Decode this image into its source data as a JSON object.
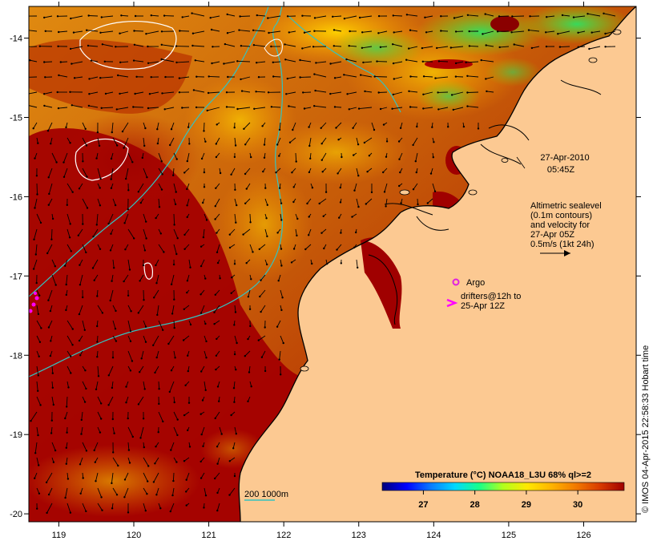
{
  "map": {
    "title": "",
    "timestamp_date": "27-Apr-2010",
    "timestamp_time": "05:45Z",
    "lon_ticks": [
      "119",
      "120",
      "121",
      "122",
      "123",
      "124",
      "125",
      "126"
    ],
    "lat_ticks": [
      "-14",
      "-15",
      "-16",
      "-17",
      "-18",
      "-19",
      "-20"
    ],
    "lon_range": [
      118.6,
      126.7
    ],
    "lat_range": [
      -13.6,
      -20.1
    ],
    "legend": {
      "altimetry_lines": [
        "Altimetric sealevel",
        "(0.1m contours)",
        "and velocity for",
        "27-Apr 05Z",
        "0.5m/s (1kt 24h)"
      ],
      "argo_label": "Argo",
      "drifters_lines": [
        "drifters@12h to",
        "25-Apr 12Z"
      ],
      "isobath_label": "200  1000m"
    },
    "colorbar": {
      "title": "Temperature (°C) NOAA18_L3U 68% ql>=2",
      "ticks": [
        "27",
        "28",
        "29",
        "30"
      ],
      "range": [
        26.2,
        30.9
      ],
      "colors": [
        "#00007a",
        "#0000ff",
        "#0a7aff",
        "#00d8ff",
        "#16ff8a",
        "#b2ff1c",
        "#ffe800",
        "#ffb400",
        "#f27a00",
        "#d83a00",
        "#a00000"
      ]
    },
    "credit": "© IMOS 04-Apr-2015 22:58:33 Hobart time",
    "colors": {
      "land": "#fcc992",
      "warm_water": "#a00000",
      "contour_line": "#ffffff",
      "isobath": "#33c3c0",
      "argo_marker": "#e020e0",
      "drifter_marker": "#ff00ff"
    }
  }
}
